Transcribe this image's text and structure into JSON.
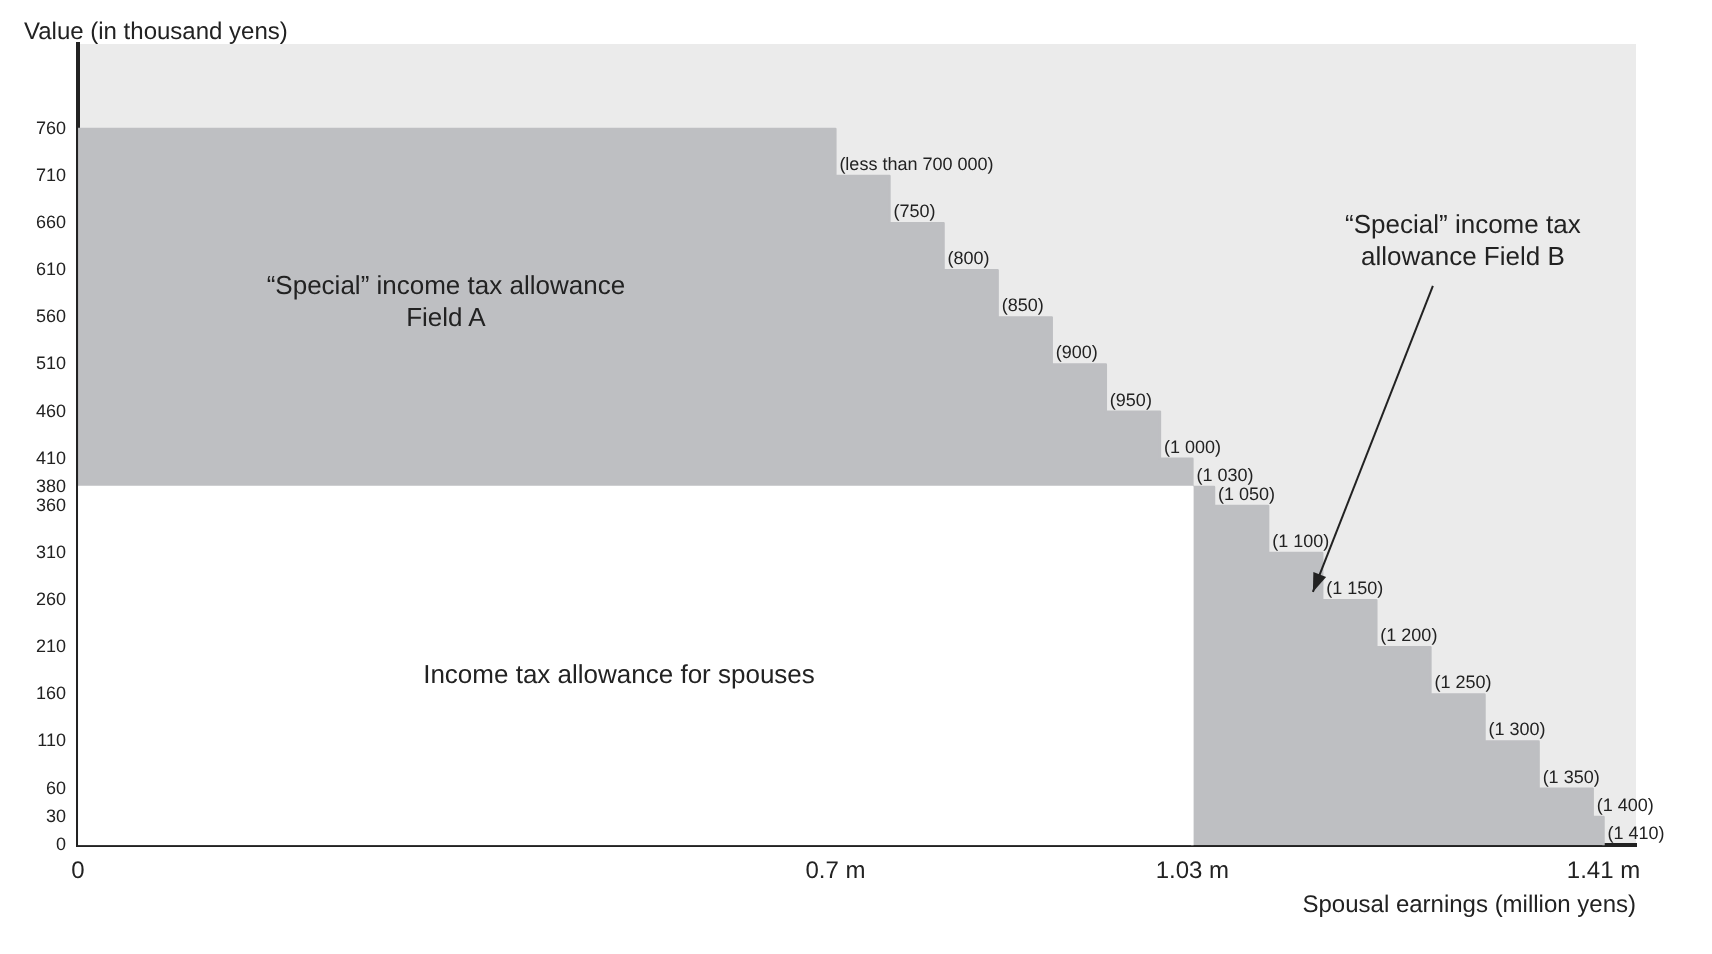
{
  "chart_data": {
    "type": "area",
    "ylabel": "Value (in thousand yens)",
    "xlabel": "Spousal earnings (million yens)",
    "series": [
      {
        "type": "area",
        "color": "#bebfc2",
        "x": [
          0,
          0.7,
          0.7,
          0.75,
          0.75,
          0.8,
          0.8,
          0.85,
          0.85,
          0.9,
          0.9,
          0.95,
          0.95,
          1.0,
          1.0,
          1.03,
          1.03,
          1.05,
          1.05,
          1.1,
          1.1,
          1.15,
          1.15,
          1.2,
          1.2,
          1.25,
          1.25,
          1.3,
          1.3,
          1.35,
          1.35,
          1.4,
          1.4,
          1.41,
          1.41
        ],
        "values": [
          760,
          760,
          710,
          710,
          660,
          660,
          610,
          610,
          560,
          560,
          510,
          510,
          460,
          460,
          410,
          410,
          380,
          380,
          360,
          360,
          310,
          310,
          260,
          260,
          210,
          210,
          160,
          160,
          110,
          110,
          60,
          60,
          30,
          30,
          0
        ]
      },
      {
        "type": "area",
        "color": "#ffffff",
        "x": [
          0,
          1.03,
          1.03
        ],
        "values": [
          380,
          380,
          0
        ]
      }
    ],
    "xlim": [
      0,
      1.44
    ],
    "xticks": [
      0,
      {
        "value": 0.7,
        "label": "0.7 m"
      },
      {
        "value": 1.03,
        "label": "1.03 m"
      },
      {
        "value": 1.41,
        "label": "1.41 m"
      }
    ],
    "ylim": [
      0,
      850
    ],
    "yticks": [
      0,
      30,
      60,
      110,
      160,
      210,
      260,
      310,
      360,
      380,
      410,
      460,
      510,
      560,
      610,
      660,
      710,
      760
    ],
    "annotations": [
      "“Special” income tax allowance\nField A",
      "Income tax allowance for spouses",
      "“Special” income tax\nallowance Field B",
      {
        "text": "(less than 700 000)",
        "x": 0.7,
        "y": 710
      },
      {
        "text": "(750)",
        "x": 0.75,
        "y": 660
      },
      {
        "text": "(800)",
        "x": 0.8,
        "y": 610
      },
      {
        "text": "(850)",
        "x": 0.85,
        "y": 560
      },
      {
        "text": "(900)",
        "x": 0.9,
        "y": 510
      },
      {
        "text": "(950)",
        "x": 0.95,
        "y": 460
      },
      {
        "text": "(1 000)",
        "x": 1.0,
        "y": 410
      },
      {
        "text": "(1 030)",
        "x": 1.03,
        "y": 380
      },
      {
        "text": "(1 050)",
        "x": 1.05,
        "y": 360
      },
      {
        "text": "(1 100)",
        "x": 1.1,
        "y": 310
      },
      {
        "text": "(1 150)",
        "x": 1.15,
        "y": 260
      },
      {
        "text": "(1 200)",
        "x": 1.2,
        "y": 210
      },
      {
        "text": "(1 250)",
        "x": 1.25,
        "y": 160
      },
      {
        "text": "(1 300)",
        "x": 1.3,
        "y": 110
      },
      {
        "text": "(1 350)",
        "x": 1.35,
        "y": 60
      },
      {
        "text": "(1 400)",
        "x": 1.4,
        "y": 30
      },
      {
        "text": "(1 410)",
        "x": 1.41,
        "y": 0
      }
    ]
  }
}
